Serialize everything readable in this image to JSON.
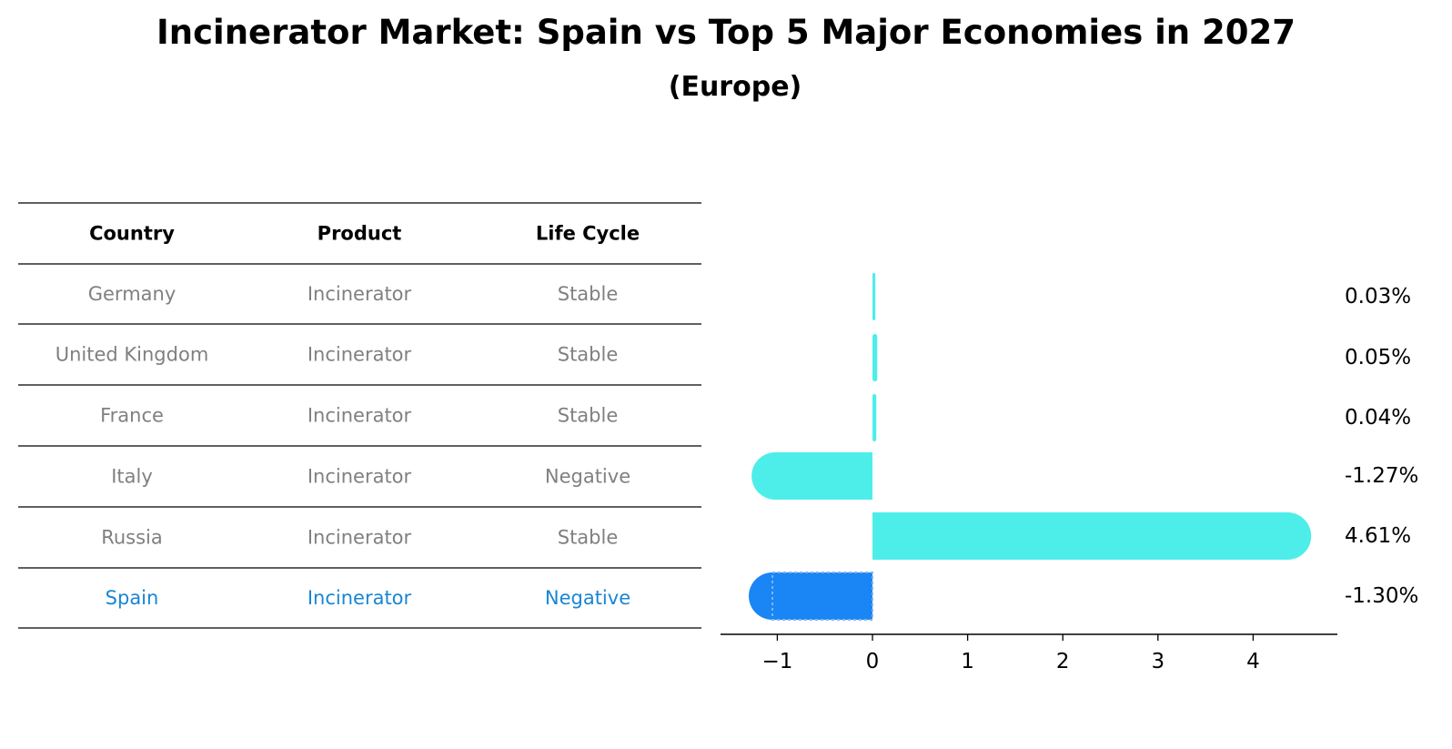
{
  "title": "Incinerator Market: Spain vs Top 5 Major Economies in 2027",
  "subtitle": "(Europe)",
  "table": {
    "headers": [
      "Country",
      "Product",
      "Life Cycle"
    ],
    "rows": [
      {
        "country": "Germany",
        "product": "Incinerator",
        "life_cycle": "Stable",
        "highlight": false
      },
      {
        "country": "United Kingdom",
        "product": "Incinerator",
        "life_cycle": "Stable",
        "highlight": false
      },
      {
        "country": "France",
        "product": "Incinerator",
        "life_cycle": "Stable",
        "highlight": false
      },
      {
        "country": "Italy",
        "product": "Incinerator",
        "life_cycle": "Negative",
        "highlight": false
      },
      {
        "country": "Russia",
        "product": "Incinerator",
        "life_cycle": "Stable",
        "highlight": false
      },
      {
        "country": "Spain",
        "product": "Incinerator",
        "life_cycle": "Negative",
        "highlight": true
      }
    ]
  },
  "colors": {
    "bar": "#4deeea",
    "highlight_bar": "#1a85f5",
    "highlight_text": "#1a85d4",
    "row_text": "#808080",
    "header_text": "#000000"
  },
  "chart_data": {
    "type": "bar",
    "orientation": "horizontal",
    "categories": [
      "Germany",
      "United Kingdom",
      "France",
      "Italy",
      "Russia",
      "Spain"
    ],
    "values": [
      0.03,
      0.05,
      0.04,
      -1.27,
      4.61,
      -1.3
    ],
    "data_labels": [
      "0.03%",
      "0.05%",
      "0.04%",
      "-1.27%",
      "4.61%",
      "-1.30%"
    ],
    "xticks": [
      -1,
      0,
      1,
      2,
      3,
      4
    ],
    "xtick_labels": [
      "−1",
      "0",
      "1",
      "2",
      "3",
      "4"
    ],
    "xlim": [
      -1.6,
      4.88
    ],
    "grid": false,
    "highlight_index": 5
  }
}
